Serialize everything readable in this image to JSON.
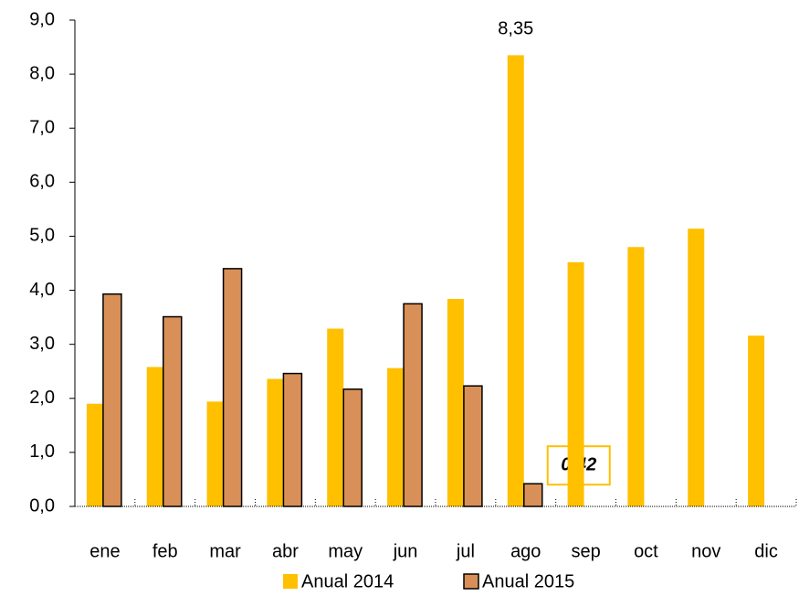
{
  "chart_data": {
    "type": "bar",
    "categories": [
      "ene",
      "feb",
      "mar",
      "abr",
      "may",
      "jun",
      "jul",
      "ago",
      "sep",
      "oct",
      "nov",
      "dic"
    ],
    "series": [
      {
        "name": "Anual 2014",
        "color": "#FFC000",
        "values": [
          1.9,
          2.58,
          1.94,
          2.36,
          3.29,
          2.56,
          3.84,
          8.35,
          4.52,
          4.8,
          5.14,
          3.16
        ],
        "value_labels": [
          null,
          null,
          null,
          null,
          null,
          null,
          null,
          "8,35",
          null,
          null,
          null,
          null
        ]
      },
      {
        "name": "Anual 2015",
        "color": "#D99058",
        "values": [
          3.93,
          3.51,
          4.4,
          2.46,
          2.17,
          3.75,
          2.23,
          0.42,
          null,
          null,
          null,
          null
        ],
        "value_labels": [
          null,
          null,
          null,
          null,
          null,
          null,
          null,
          "0,42",
          null,
          null,
          null,
          null
        ]
      }
    ],
    "ylim": [
      0,
      9
    ],
    "yticks": [
      {
        "value": 0,
        "label": "0,0"
      },
      {
        "value": 1,
        "label": "1,0"
      },
      {
        "value": 2,
        "label": "2,0"
      },
      {
        "value": 3,
        "label": "3,0"
      },
      {
        "value": 4,
        "label": "4,0"
      },
      {
        "value": 5,
        "label": "5,0"
      },
      {
        "value": 6,
        "label": "6,0"
      },
      {
        "value": 7,
        "label": "7,0"
      },
      {
        "value": 8,
        "label": "8,0"
      },
      {
        "value": 9,
        "label": "9,0"
      }
    ],
    "grid": false,
    "legend": "bottom"
  }
}
